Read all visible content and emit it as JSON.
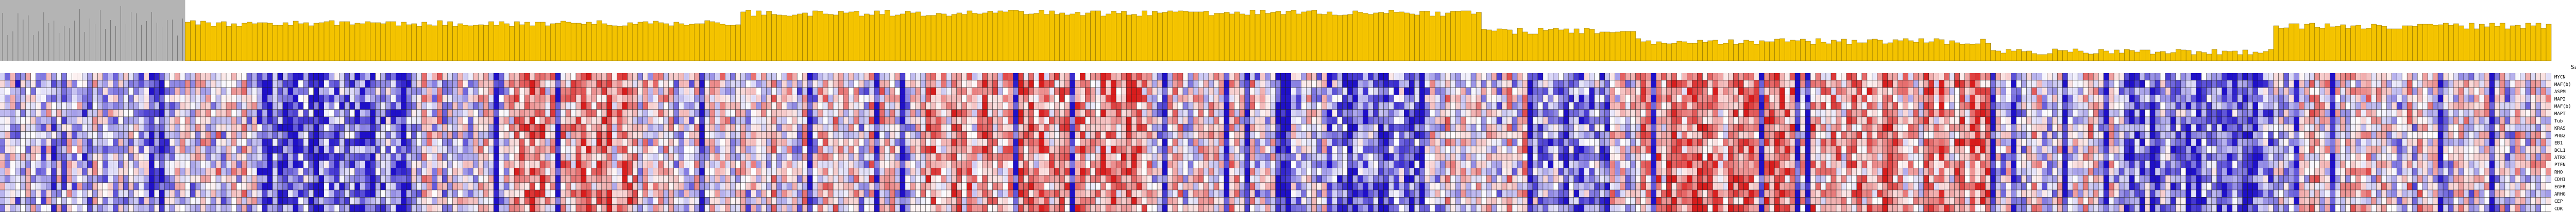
{
  "chart_data": {
    "type": "heatmap",
    "title": "",
    "xlabel": "",
    "ylabel": "",
    "row_header": "SampleName",
    "rows": [
      "MYCN",
      "MAF(b)",
      "ASPM",
      "MAP2",
      "MAF(b)",
      "MAPT",
      "Tub",
      "KRAS",
      "PHB2",
      "EB1",
      "BCL1",
      "ATRX",
      "PTEN",
      "RHO",
      "CDH1",
      "EGFR",
      "ARHG",
      "CEP",
      "CDK"
    ],
    "column_count": 496,
    "columns_unreadable": true,
    "dendrogram": {
      "present": true,
      "colors": {
        "left_cluster": "#b4b4b4",
        "right_cluster": "#f4c300"
      },
      "left_cluster_columns": 36
    },
    "color_scale": {
      "low": "#1f10c8",
      "mid": "#ffffff",
      "high": "#d81c1c"
    },
    "value_range": [
      -1,
      1
    ],
    "values_note": "Individual cell values are not legible at this resolution; the heatmap pattern is approximated procedurally."
  }
}
